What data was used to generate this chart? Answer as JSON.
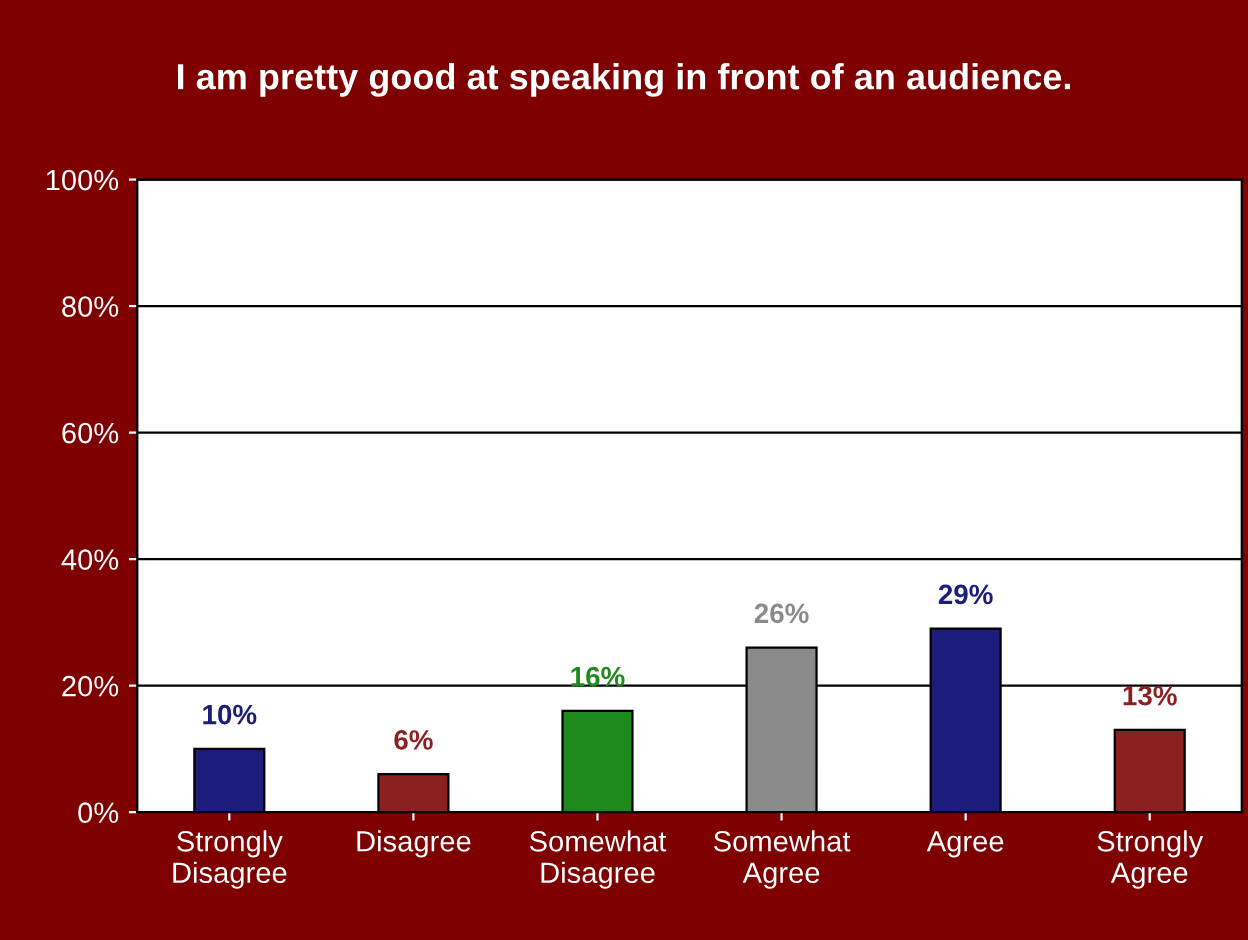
{
  "chart_data": {
    "type": "bar",
    "title": "I am pretty good at speaking in front of an audience.",
    "categories": [
      "Strongly\nDisagree",
      "Disagree",
      "Somewhat\nDisagree",
      "Somewhat\nAgree",
      "Agree",
      "Strongly\nAgree"
    ],
    "values": [
      10,
      6,
      16,
      26,
      29,
      13
    ],
    "value_labels": [
      "10%",
      "6%",
      "16%",
      "26%",
      "29%",
      "13%"
    ],
    "colors": [
      "#1c1c7c",
      "#8b2020",
      "#1e8a1e",
      "#8a8a8a",
      "#1c1c7c",
      "#8b2020"
    ],
    "ylim": [
      0,
      100
    ],
    "yticks": [
      {
        "value": 0,
        "label": "0%"
      },
      {
        "value": 20,
        "label": "20%"
      },
      {
        "value": 40,
        "label": "40%"
      },
      {
        "value": 60,
        "label": "60%"
      },
      {
        "value": 80,
        "label": "80%"
      },
      {
        "value": 100,
        "label": "100%"
      }
    ],
    "grid": "y",
    "legend": false
  }
}
